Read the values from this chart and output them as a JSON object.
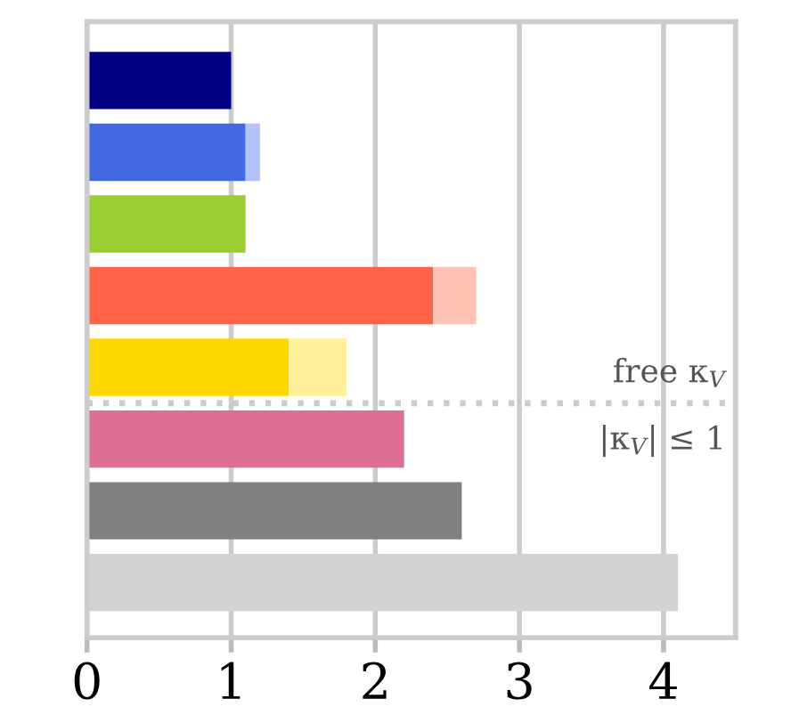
{
  "chart_data": {
    "type": "bar",
    "orientation": "horizontal",
    "stacked": true,
    "categories": [
      null,
      null,
      null,
      null,
      null,
      null,
      null,
      null
    ],
    "series": [
      {
        "colors": [
          "#000080",
          "#4169e1",
          "#9acd32",
          "#ff6347",
          "#ffd700",
          "#db7093",
          "#808080",
          "#d3d3d3"
        ],
        "values": [
          1.0,
          1.1,
          1.1,
          2.4,
          1.4,
          2.2,
          2.6,
          4.1
        ]
      },
      {
        "colors": [
          "#b3c3f5",
          "#b3c3f5",
          "#c8e68a",
          "#ffc1b3",
          "#fff099",
          "#edb6c9",
          "#c0c0c0",
          "#e8e8e8"
        ],
        "values": [
          null,
          0.1,
          null,
          0.3,
          0.4,
          null,
          null,
          null
        ]
      }
    ],
    "xlim": [
      0,
      4.5
    ],
    "xticks": [
      0,
      1,
      2,
      3,
      4
    ],
    "grid": "x",
    "tick_labels": "x",
    "annotations": [
      "free κ$_{V}$",
      "|κ$_{V}$| ≤ 1"
    ]
  }
}
